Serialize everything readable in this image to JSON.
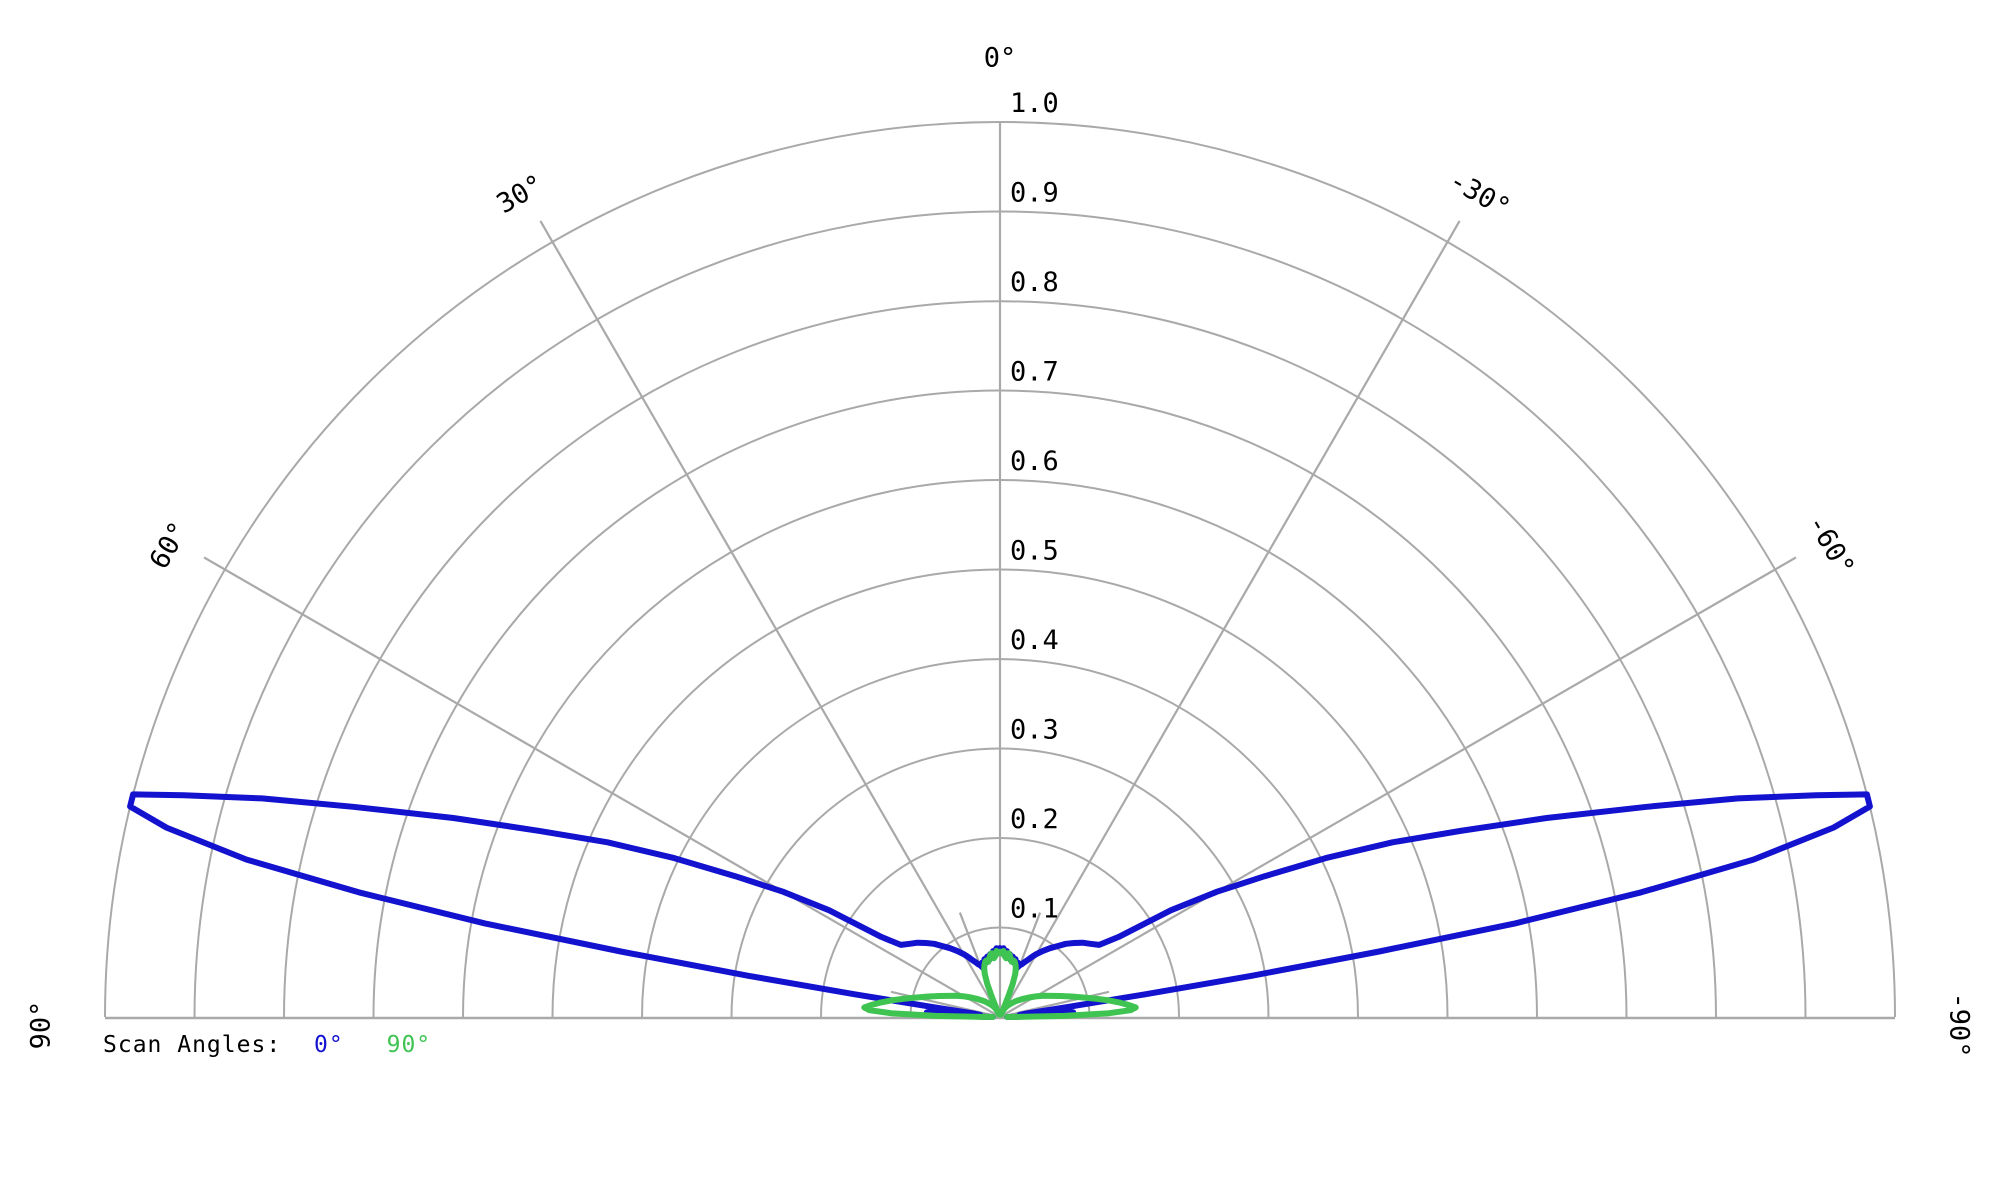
{
  "legend": {
    "prefix": "Scan Angles:",
    "items": [
      {
        "label": "0°",
        "color": "#1212cf"
      },
      {
        "label": "90°",
        "color": "#3fc351"
      }
    ]
  },
  "angle_axis": {
    "unit": "degrees",
    "labels": [
      {
        "text": "0°",
        "deg": 0
      },
      {
        "text": "30°",
        "deg": 30
      },
      {
        "text": "-30°",
        "deg": -30
      },
      {
        "text": "60°",
        "deg": 60
      },
      {
        "text": "-60°",
        "deg": -60
      },
      {
        "text": "90°",
        "deg": 90
      },
      {
        "text": "-90°",
        "deg": -90
      }
    ]
  },
  "radial_axis": {
    "labels": [
      "0.1",
      "0.2",
      "0.3",
      "0.4",
      "0.5",
      "0.6",
      "0.7",
      "0.8",
      "0.9",
      "1.0"
    ],
    "values": [
      0.1,
      0.2,
      0.3,
      0.4,
      0.5,
      0.6,
      0.7,
      0.8,
      0.9,
      1.0
    ],
    "max": 1.0
  },
  "grid": {
    "color": "#a9a9a9",
    "ring_values": [
      0.1,
      0.2,
      0.3,
      0.4,
      0.5,
      0.6,
      0.7,
      0.8,
      0.9,
      1.0
    ],
    "spoke_degs": [
      -60,
      -30,
      0,
      30,
      60
    ],
    "spoke_tick_degs": [
      -60,
      -30,
      30,
      60
    ],
    "inner_spoke_degs": [
      -77,
      -21,
      21,
      77
    ],
    "inner_spoke_r": 0.125
  },
  "chart_data": {
    "type": "line",
    "coordinate_system": "half-polar",
    "title": "",
    "angle_range_deg": [
      -90,
      90
    ],
    "r_range": [
      0,
      1.0
    ],
    "grid": "on",
    "legend_position": "bottom-left",
    "series": [
      {
        "name": "scan angle 0°",
        "color": "#1212cf",
        "symmetric_mirror": true,
        "points_theta_r": [
          [
            0,
            0.077
          ],
          [
            1.5,
            0.072
          ],
          [
            3,
            0.077
          ],
          [
            4.5,
            0.07
          ],
          [
            6,
            0.074
          ],
          [
            7.5,
            0.067
          ],
          [
            9,
            0.071
          ],
          [
            10.5,
            0.065
          ],
          [
            12,
            0.069
          ],
          [
            13.5,
            0.063
          ],
          [
            15,
            0.067
          ],
          [
            16.5,
            0.061
          ],
          [
            18,
            0.064
          ],
          [
            19.5,
            0.059
          ],
          [
            21,
            0.062
          ],
          [
            22.5,
            0.064
          ],
          [
            24,
            0.067
          ],
          [
            26,
            0.071
          ],
          [
            28,
            0.076
          ],
          [
            30,
            0.081
          ],
          [
            33,
            0.088
          ],
          [
            36,
            0.095
          ],
          [
            39,
            0.102
          ],
          [
            42,
            0.11
          ],
          [
            45,
            0.117
          ],
          [
            48,
            0.124
          ],
          [
            51,
            0.13
          ],
          [
            54,
            0.137
          ],
          [
            56,
            0.16
          ],
          [
            58,
            0.225
          ],
          [
            60,
            0.28
          ],
          [
            62,
            0.335
          ],
          [
            64,
            0.405
          ],
          [
            66,
            0.48
          ],
          [
            68,
            0.555
          ],
          [
            70,
            0.65
          ],
          [
            72,
            0.76
          ],
          [
            73.5,
            0.86
          ],
          [
            74.8,
            0.945
          ],
          [
            75.6,
            1.0
          ],
          [
            76.4,
            1.0
          ],
          [
            77.2,
            0.955
          ],
          [
            78.2,
            0.86
          ],
          [
            79.0,
            0.73
          ],
          [
            79.7,
            0.585
          ],
          [
            80.2,
            0.43
          ],
          [
            80.7,
            0.285
          ],
          [
            81.1,
            0.165
          ],
          [
            81.6,
            0.075
          ],
          [
            82.6,
            0.03
          ],
          [
            84,
            0.022
          ],
          [
            85.2,
            0.06
          ],
          [
            86.4,
            0.082
          ],
          [
            87.6,
            0.06
          ],
          [
            88.8,
            0.032
          ],
          [
            90,
            0.008
          ]
        ]
      },
      {
        "name": "scan angle 90°",
        "color": "#3fc351",
        "symmetric_mirror": true,
        "points_theta_r": [
          [
            0,
            0.073
          ],
          [
            1.5,
            0.071
          ],
          [
            3,
            0.074
          ],
          [
            4.5,
            0.068
          ],
          [
            6,
            0.066
          ],
          [
            7.5,
            0.072
          ],
          [
            9,
            0.07
          ],
          [
            10.5,
            0.066
          ],
          [
            12,
            0.063
          ],
          [
            13.5,
            0.065
          ],
          [
            15,
            0.064
          ],
          [
            16.5,
            0.061
          ],
          [
            18,
            0.057
          ],
          [
            19.5,
            0.051
          ],
          [
            21,
            0.04
          ],
          [
            22,
            0.026
          ],
          [
            22.8,
            0.01
          ],
          [
            23.3,
            0.003
          ],
          [
            25,
            0.007
          ],
          [
            28,
            0.011
          ],
          [
            32,
            0.014
          ],
          [
            36,
            0.017
          ],
          [
            40,
            0.02
          ],
          [
            44,
            0.024
          ],
          [
            48,
            0.028
          ],
          [
            52,
            0.033
          ],
          [
            56,
            0.039
          ],
          [
            60,
            0.046
          ],
          [
            64,
            0.054
          ],
          [
            68,
            0.063
          ],
          [
            71,
            0.072
          ],
          [
            74,
            0.083
          ],
          [
            76.5,
            0.094
          ],
          [
            79,
            0.108
          ],
          [
            81,
            0.121
          ],
          [
            83,
            0.134
          ],
          [
            84.8,
            0.145
          ],
          [
            86,
            0.152
          ],
          [
            87,
            0.146
          ],
          [
            88,
            0.122
          ],
          [
            89,
            0.072
          ],
          [
            89.6,
            0.028
          ],
          [
            90,
            0.008
          ]
        ]
      }
    ]
  }
}
